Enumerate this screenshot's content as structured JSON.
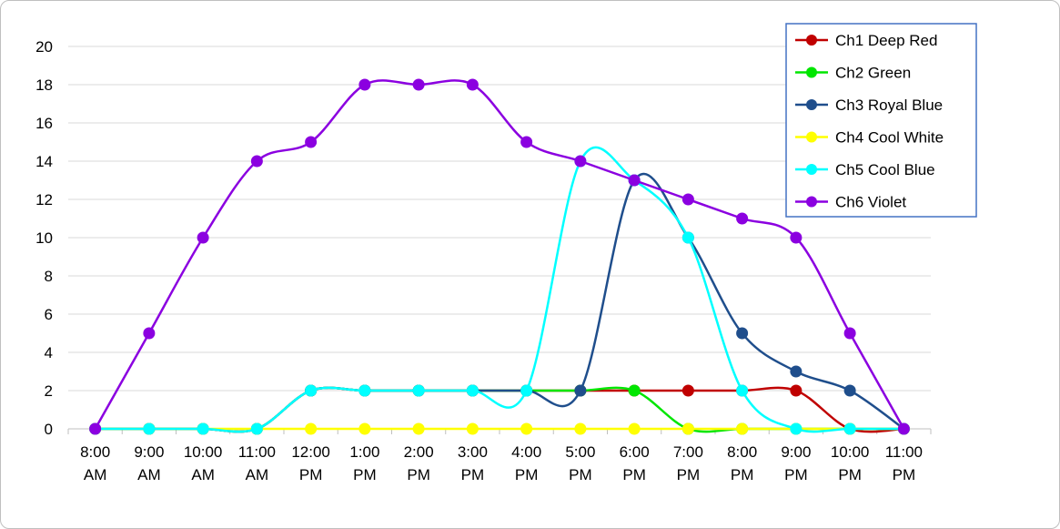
{
  "chart_data": {
    "type": "line",
    "title": "",
    "xlabel": "",
    "ylabel": "",
    "ylim": [
      0,
      20
    ],
    "yticks": [
      "0",
      "2",
      "4",
      "6",
      "8",
      "10",
      "12",
      "14",
      "16",
      "18",
      "20"
    ],
    "grid": true,
    "legend_position": "top-right",
    "categories": [
      [
        "8:00",
        "AM"
      ],
      [
        "9:00",
        "AM"
      ],
      [
        "10:00",
        "AM"
      ],
      [
        "11:00",
        "AM"
      ],
      [
        "12:00",
        "PM"
      ],
      [
        "1:00",
        "PM"
      ],
      [
        "2:00",
        "PM"
      ],
      [
        "3:00",
        "PM"
      ],
      [
        "4:00",
        "PM"
      ],
      [
        "5:00",
        "PM"
      ],
      [
        "6:00",
        "PM"
      ],
      [
        "7:00",
        "PM"
      ],
      [
        "8:00",
        "PM"
      ],
      [
        "9:00",
        "PM"
      ],
      [
        "10:00",
        "PM"
      ],
      [
        "11:00",
        "PM"
      ]
    ],
    "series": [
      {
        "name": "Ch1 Deep Red",
        "color": "#c00000",
        "values": [
          0,
          0,
          0,
          0,
          2,
          2,
          2,
          2,
          2,
          2,
          2,
          2,
          2,
          2,
          0,
          0
        ]
      },
      {
        "name": "Ch2 Green",
        "color": "#00e600",
        "values": [
          0,
          0,
          0,
          0,
          2,
          2,
          2,
          2,
          2,
          2,
          2,
          0,
          0,
          0,
          0,
          0
        ]
      },
      {
        "name": "Ch3 Royal Blue",
        "color": "#1f4e8c",
        "values": [
          0,
          0,
          0,
          0,
          2,
          2,
          2,
          2,
          2,
          2,
          13,
          10,
          5,
          3,
          2,
          0
        ]
      },
      {
        "name": "Ch4 Cool White",
        "color": "#ffff00",
        "values": [
          0,
          0,
          0,
          0,
          0,
          0,
          0,
          0,
          0,
          0,
          0,
          0,
          0,
          0,
          0,
          0
        ]
      },
      {
        "name": "Ch5 Cool Blue",
        "color": "#00ffff",
        "values": [
          0,
          0,
          0,
          0,
          2,
          2,
          2,
          2,
          2,
          14,
          13,
          10,
          2,
          0,
          0,
          0
        ]
      },
      {
        "name": "Ch6 Violet",
        "color": "#8b00e0",
        "values": [
          0,
          5,
          10,
          14,
          15,
          18,
          18,
          18,
          15,
          14,
          13,
          12,
          11,
          10,
          5,
          0
        ]
      }
    ]
  }
}
